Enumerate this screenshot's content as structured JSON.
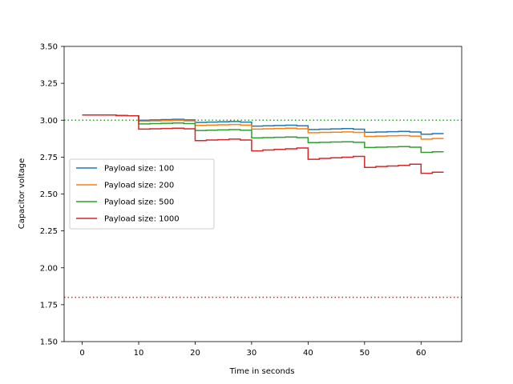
{
  "chart_data": {
    "type": "line",
    "title": "",
    "xlabel": "Time in seconds",
    "ylabel": "Capacitor voltage",
    "xlim": [
      -3.2,
      67.2
    ],
    "ylim": [
      1.5,
      3.5
    ],
    "xticks": [
      0,
      10,
      20,
      30,
      40,
      50,
      60
    ],
    "yticks": [
      1.5,
      1.75,
      2.0,
      2.25,
      2.5,
      2.75,
      3.0,
      3.25,
      3.5
    ],
    "ytick_labels": [
      "1.50",
      "1.75",
      "2.00",
      "2.25",
      "2.50",
      "2.75",
      "3.00",
      "3.25",
      "3.50"
    ],
    "grid": false,
    "legend_position": "center-left",
    "reference_lines": [
      {
        "y": 3.0,
        "color": "#2ca02c",
        "style": "dotted"
      },
      {
        "y": 1.8,
        "color": "#d62728",
        "style": "dotted"
      }
    ],
    "series": [
      {
        "name": "Payload size: 100",
        "color": "#1f77b4",
        "x": [
          0,
          6,
          6,
          8,
          8,
          10,
          10,
          12,
          12,
          14,
          14,
          16,
          16,
          18,
          18,
          20,
          20,
          22,
          22,
          24,
          24,
          26,
          26,
          28,
          28,
          30,
          30,
          32,
          32,
          34,
          34,
          36,
          36,
          38,
          38,
          40,
          40,
          42,
          42,
          44,
          44,
          46,
          46,
          48,
          48,
          50,
          50,
          52,
          52,
          54,
          54,
          56,
          56,
          58,
          58,
          60,
          60,
          62,
          62,
          64
        ],
        "y": [
          3.035,
          3.035,
          3.032,
          3.032,
          3.03,
          3.03,
          3.0,
          3.0,
          3.002,
          3.002,
          3.004,
          3.004,
          3.006,
          3.006,
          3.002,
          3.002,
          2.985,
          2.985,
          2.987,
          2.987,
          2.989,
          2.989,
          2.991,
          2.991,
          2.987,
          2.987,
          2.96,
          2.96,
          2.962,
          2.962,
          2.964,
          2.964,
          2.966,
          2.966,
          2.962,
          2.962,
          2.937,
          2.937,
          2.939,
          2.939,
          2.941,
          2.941,
          2.943,
          2.943,
          2.939,
          2.939,
          2.918,
          2.918,
          2.92,
          2.92,
          2.922,
          2.922,
          2.924,
          2.924,
          2.92,
          2.92,
          2.905,
          2.905,
          2.909,
          2.909
        ]
      },
      {
        "name": "Payload size: 200",
        "color": "#ff7f0e",
        "x": [
          0,
          6,
          6,
          8,
          8,
          10,
          10,
          12,
          12,
          14,
          14,
          16,
          16,
          18,
          18,
          20,
          20,
          22,
          22,
          24,
          24,
          26,
          26,
          28,
          28,
          30,
          30,
          32,
          32,
          34,
          34,
          36,
          36,
          38,
          38,
          40,
          40,
          42,
          42,
          44,
          44,
          46,
          46,
          48,
          48,
          50,
          50,
          52,
          52,
          54,
          54,
          56,
          56,
          58,
          58,
          60,
          60,
          62,
          62,
          64
        ],
        "y": [
          3.035,
          3.035,
          3.032,
          3.032,
          3.03,
          3.03,
          2.993,
          2.993,
          2.995,
          2.995,
          2.997,
          2.997,
          2.999,
          2.999,
          2.995,
          2.995,
          2.965,
          2.965,
          2.967,
          2.967,
          2.969,
          2.969,
          2.971,
          2.971,
          2.967,
          2.967,
          2.94,
          2.94,
          2.942,
          2.942,
          2.944,
          2.944,
          2.946,
          2.946,
          2.942,
          2.942,
          2.915,
          2.915,
          2.917,
          2.917,
          2.919,
          2.919,
          2.921,
          2.921,
          2.917,
          2.917,
          2.89,
          2.89,
          2.892,
          2.892,
          2.894,
          2.894,
          2.896,
          2.896,
          2.892,
          2.892,
          2.872,
          2.872,
          2.876,
          2.876
        ]
      },
      {
        "name": "Payload size: 500",
        "color": "#2ca02c",
        "x": [
          0,
          6,
          6,
          8,
          8,
          10,
          10,
          12,
          12,
          14,
          14,
          16,
          16,
          18,
          18,
          20,
          20,
          22,
          22,
          24,
          24,
          26,
          26,
          28,
          28,
          30,
          30,
          32,
          32,
          34,
          34,
          36,
          36,
          38,
          38,
          40,
          40,
          42,
          42,
          44,
          44,
          46,
          46,
          48,
          48,
          50,
          50,
          52,
          52,
          54,
          54,
          56,
          56,
          58,
          58,
          60,
          60,
          62,
          62,
          64
        ],
        "y": [
          3.035,
          3.035,
          3.032,
          3.032,
          3.03,
          3.03,
          2.975,
          2.975,
          2.977,
          2.977,
          2.979,
          2.979,
          2.981,
          2.981,
          2.977,
          2.977,
          2.93,
          2.93,
          2.932,
          2.932,
          2.934,
          2.934,
          2.936,
          2.936,
          2.932,
          2.932,
          2.88,
          2.88,
          2.882,
          2.882,
          2.884,
          2.884,
          2.886,
          2.886,
          2.882,
          2.882,
          2.848,
          2.848,
          2.85,
          2.85,
          2.852,
          2.852,
          2.854,
          2.854,
          2.85,
          2.85,
          2.815,
          2.815,
          2.817,
          2.817,
          2.819,
          2.819,
          2.821,
          2.821,
          2.817,
          2.817,
          2.782,
          2.782,
          2.786,
          2.786
        ]
      },
      {
        "name": "Payload size: 1000",
        "color": "#d62728",
        "x": [
          0,
          6,
          6,
          8,
          8,
          10,
          10,
          12,
          12,
          14,
          14,
          16,
          16,
          18,
          18,
          20,
          20,
          22,
          22,
          24,
          24,
          26,
          26,
          28,
          28,
          30,
          30,
          32,
          32,
          34,
          34,
          36,
          36,
          38,
          38,
          40,
          40,
          42,
          42,
          44,
          44,
          46,
          46,
          48,
          48,
          50,
          50,
          52,
          52,
          54,
          54,
          56,
          56,
          58,
          58,
          60,
          60,
          62,
          62,
          64
        ],
        "y": [
          3.035,
          3.035,
          3.032,
          3.032,
          3.03,
          3.03,
          2.94,
          2.94,
          2.942,
          2.942,
          2.944,
          2.944,
          2.946,
          2.946,
          2.942,
          2.942,
          2.862,
          2.862,
          2.866,
          2.866,
          2.868,
          2.868,
          2.872,
          2.872,
          2.866,
          2.866,
          2.792,
          2.792,
          2.798,
          2.798,
          2.802,
          2.802,
          2.806,
          2.806,
          2.812,
          2.812,
          2.735,
          2.735,
          2.741,
          2.741,
          2.745,
          2.745,
          2.749,
          2.749,
          2.755,
          2.755,
          2.68,
          2.68,
          2.686,
          2.686,
          2.69,
          2.69,
          2.694,
          2.694,
          2.702,
          2.702,
          2.64,
          2.64,
          2.648,
          2.648
        ]
      }
    ]
  }
}
